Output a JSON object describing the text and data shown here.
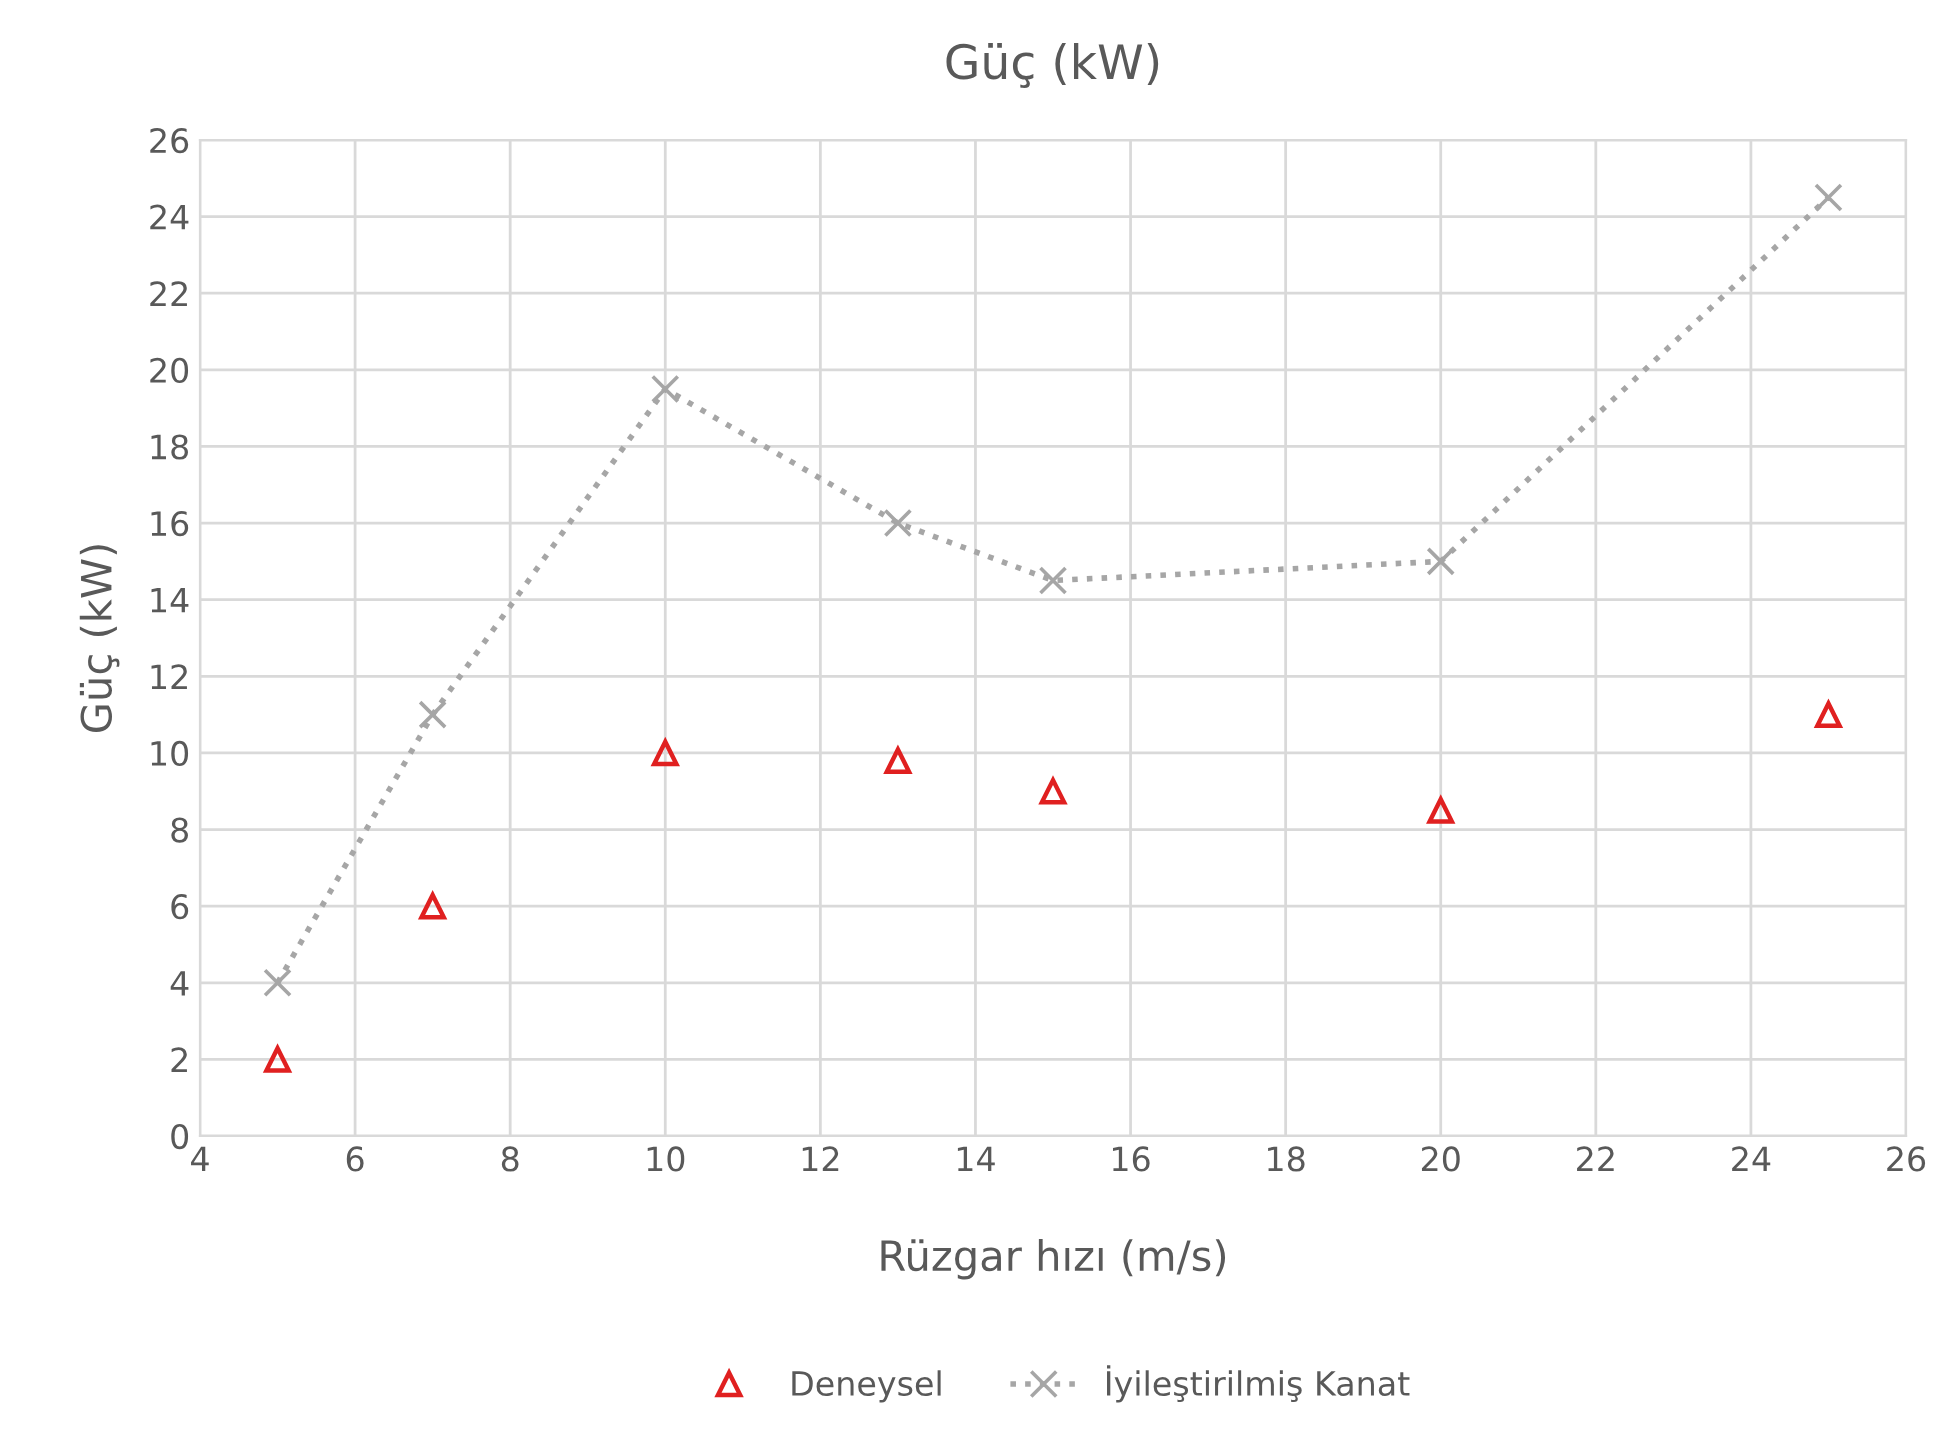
{
  "chart_data": {
    "type": "line",
    "title": "Güç (kW)",
    "xlabel": "Rüzgar hızı (m/s)",
    "ylabel": "Güç (kW)",
    "x": [
      5,
      7,
      10,
      13,
      15,
      20,
      25
    ],
    "series": [
      {
        "name": "Deneysel",
        "type": "scatter",
        "color": "#e02020",
        "marker": "triangle",
        "values": [
          2,
          6,
          10,
          9.8,
          9,
          8.5,
          11
        ]
      },
      {
        "name": "İyileştirilmiş Kanat",
        "color": "#a6a6a6",
        "marker": "cross",
        "line_style": "dotted",
        "values": [
          4,
          11,
          19.5,
          16,
          14.5,
          15,
          24.5
        ]
      }
    ],
    "xlim": [
      4,
      26
    ],
    "xticks": [
      4,
      6,
      8,
      10,
      12,
      14,
      16,
      18,
      20,
      22,
      24,
      26
    ],
    "ylim": [
      0,
      26
    ],
    "yticks": [
      0,
      2,
      4,
      6,
      8,
      10,
      12,
      14,
      16,
      18,
      20,
      22,
      24,
      26
    ],
    "grid": true,
    "legend": "bottom"
  }
}
